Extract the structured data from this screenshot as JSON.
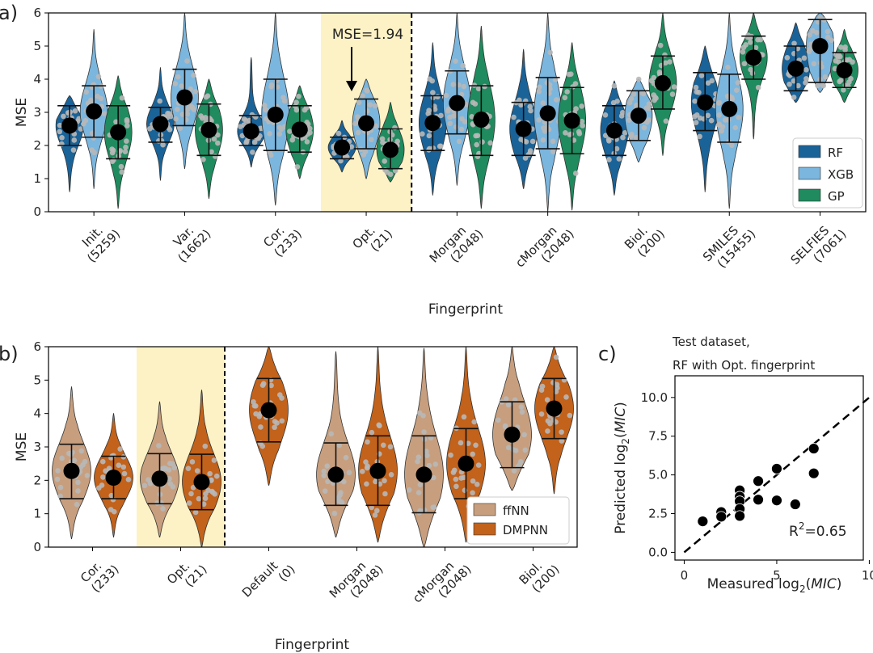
{
  "colors": {
    "RF": "#1a6398",
    "XGB": "#7bb6de",
    "GP": "#1f8b5e",
    "ffNN": "#c79f7f",
    "DMPNN": "#c2621b",
    "highlight": "#fdf2c5",
    "point": "#b8b8b8",
    "mean": "#000000"
  },
  "panel_a": {
    "label": "a)",
    "annotation": "MSE=1.94",
    "chart_data": {
      "type": "violin",
      "xlabel": "Fingerprint",
      "ylabel": "MSE",
      "ylim": [
        0,
        6
      ],
      "yticks": [
        0,
        1,
        2,
        3,
        4,
        5,
        6
      ],
      "highlight_group": 3,
      "divider_after_group": 3,
      "categories": [
        {
          "name": "Init.",
          "count": "(5259)"
        },
        {
          "name": "Var.",
          "count": "(1662)"
        },
        {
          "name": "Cor.",
          "count": "(233)"
        },
        {
          "name": "Opt.",
          "count": "(21)"
        },
        {
          "name": "Morgan",
          "count": "(2048)"
        },
        {
          "name": "cMorgan",
          "count": "(2048)"
        },
        {
          "name": "Biol.",
          "count": "(200)"
        },
        {
          "name": "SMILES",
          "count": "(15455)"
        },
        {
          "name": "SELFIES",
          "count": "(7061)"
        }
      ],
      "legend": [
        "RF",
        "XGB",
        "GP"
      ],
      "legend_position": "lower-right",
      "series": [
        {
          "name": "RF",
          "mean": [
            2.6,
            2.65,
            2.43,
            1.94,
            2.68,
            2.5,
            2.45,
            3.3,
            4.32
          ],
          "lo": [
            2.0,
            2.1,
            2.0,
            1.6,
            1.85,
            1.7,
            1.7,
            2.45,
            3.65
          ],
          "hi": [
            3.2,
            3.15,
            2.9,
            2.25,
            3.5,
            3.3,
            3.2,
            4.2,
            5.0
          ],
          "min": [
            0.6,
            0.95,
            1.35,
            1.2,
            0.5,
            0.7,
            0.5,
            0.6,
            3.3
          ],
          "max": [
            3.5,
            4.35,
            4.65,
            2.75,
            5.1,
            4.9,
            3.95,
            5.0,
            5.7
          ]
        },
        {
          "name": "XGB",
          "mean": [
            3.03,
            3.45,
            2.93,
            2.67,
            3.28,
            2.97,
            2.9,
            3.1,
            5.0
          ],
          "lo": [
            2.25,
            2.6,
            1.85,
            1.9,
            2.35,
            1.9,
            2.15,
            2.1,
            3.9
          ],
          "hi": [
            3.8,
            4.3,
            4.0,
            3.4,
            4.25,
            4.05,
            3.65,
            4.15,
            5.8
          ],
          "min": [
            0.7,
            1.3,
            0.2,
            1.0,
            0.8,
            0.0,
            1.5,
            0.1,
            3.6
          ],
          "max": [
            5.5,
            6.0,
            6.0,
            4.0,
            6.0,
            6.0,
            4.0,
            6.0,
            6.0
          ]
        },
        {
          "name": "GP",
          "mean": [
            2.4,
            2.47,
            2.48,
            1.87,
            2.78,
            2.75,
            3.88,
            4.65,
            4.27
          ],
          "lo": [
            1.6,
            1.7,
            1.8,
            1.3,
            1.7,
            1.75,
            3.1,
            4.0,
            3.75
          ],
          "hi": [
            3.2,
            3.25,
            3.2,
            2.5,
            3.8,
            3.75,
            4.7,
            5.3,
            4.8
          ],
          "min": [
            0.1,
            0.4,
            1.0,
            0.9,
            0.1,
            0.05,
            1.7,
            2.2,
            3.3
          ],
          "max": [
            4.1,
            4.0,
            3.8,
            3.3,
            5.6,
            5.1,
            6.0,
            6.0,
            5.5
          ]
        }
      ]
    }
  },
  "panel_b": {
    "label": "b)",
    "chart_data": {
      "type": "violin",
      "xlabel": "Fingerprint",
      "ylabel": "MSE",
      "ylim": [
        0,
        6
      ],
      "yticks": [
        0,
        1,
        2,
        3,
        4,
        5,
        6
      ],
      "highlight_group": 1,
      "divider_after_group": 1,
      "categories": [
        {
          "name": "Cor.",
          "count": "(233)"
        },
        {
          "name": "Opt.",
          "count": "(21)"
        },
        {
          "name": "Default",
          "count": "(0)"
        },
        {
          "name": "Morgan",
          "count": "(2048)"
        },
        {
          "name": "cMorgan",
          "count": "(2048)"
        },
        {
          "name": "Biol.",
          "count": "(200)"
        }
      ],
      "legend": [
        "ffNN",
        "DMPNN"
      ],
      "legend_position": "lower-right",
      "series": [
        {
          "name": "ffNN",
          "mean": [
            2.28,
            2.05,
            null,
            2.17,
            2.17,
            3.37
          ],
          "lo": [
            1.45,
            1.3,
            null,
            1.25,
            1.03,
            2.38
          ],
          "hi": [
            3.08,
            2.8,
            null,
            3.12,
            3.33,
            4.35
          ],
          "min": [
            0.25,
            0.3,
            null,
            0.3,
            0.0,
            1.7
          ],
          "max": [
            4.8,
            4.35,
            null,
            5.85,
            5.95,
            6.0
          ]
        },
        {
          "name": "DMPNN",
          "mean": [
            2.08,
            1.95,
            4.1,
            2.28,
            2.5,
            4.15
          ],
          "lo": [
            1.45,
            1.12,
            3.15,
            1.25,
            1.45,
            3.25
          ],
          "hi": [
            2.72,
            2.78,
            5.05,
            3.33,
            3.55,
            5.05
          ],
          "min": [
            0.3,
            0.0,
            1.85,
            0.15,
            0.15,
            1.6
          ],
          "max": [
            4.0,
            4.7,
            6.0,
            6.0,
            6.0,
            6.0
          ]
        }
      ]
    }
  },
  "panel_c": {
    "label": "c)",
    "chart_data": {
      "type": "scatter",
      "title_line1": "Test dataset,",
      "title_line2": "RF with Opt. fingerprint",
      "xlabel": "Measured log",
      "xlabel_sub": "2",
      "xlabel_var": "MIC",
      "ylabel": "Predicted log",
      "ylabel_sub": "2",
      "ylabel_var": "MIC",
      "xlim": [
        -0.5,
        10.2
      ],
      "ylim": [
        -0.5,
        11.4
      ],
      "xticks": [
        0,
        5,
        10
      ],
      "yticks": [
        0.0,
        2.5,
        5.0,
        7.5,
        10.0
      ],
      "ytick_labels": [
        "0.0",
        "2.5",
        "5.0",
        "7.5",
        "10.0"
      ],
      "annotation": "R",
      "annotation_sup": "2",
      "annotation_value": "=0.65",
      "diagonal": [
        [
          0,
          0
        ],
        [
          10,
          10
        ]
      ],
      "x": [
        1,
        2,
        2,
        3,
        3,
        3,
        3,
        3,
        4,
        4,
        5,
        5,
        6,
        7,
        7
      ],
      "y": [
        2.0,
        2.6,
        2.3,
        4.0,
        3.6,
        3.3,
        2.8,
        2.35,
        4.6,
        3.4,
        5.4,
        3.35,
        3.1,
        6.7,
        5.1
      ]
    }
  }
}
